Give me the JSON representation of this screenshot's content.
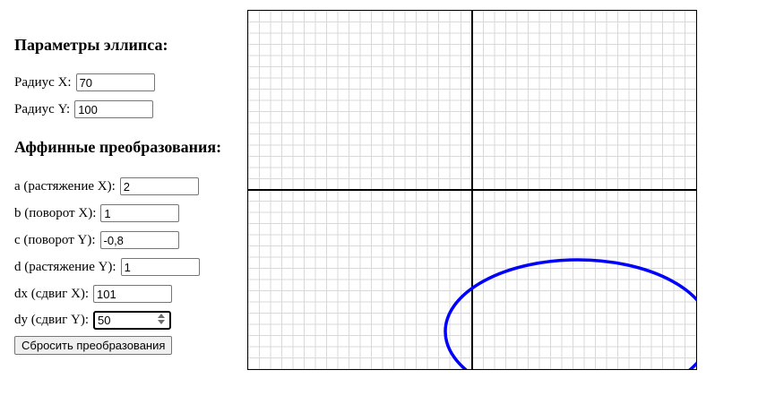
{
  "ellipse_params": {
    "heading": "Параметры эллипса:",
    "radius_x_label": "Радиус X:",
    "radius_x_value": "70",
    "radius_y_label": "Радиус Y:",
    "radius_y_value": "100"
  },
  "affine": {
    "heading": "Аффинные преобразования:",
    "a_label": "a (растяжение X):",
    "a_value": "2",
    "b_label": "b (поворот X):",
    "b_value": "1",
    "c_label": "c (поворот Y):",
    "c_value": "-0,8",
    "d_label": "d (растяжение Y):",
    "d_value": "1",
    "dx_label": "dx (сдвиг X):",
    "dx_value": "101",
    "dy_label": "dy (сдвиг Y):",
    "dy_value": "50"
  },
  "reset_button_label": "Сбросить преобразования",
  "canvas": {
    "grid_color": "#d9d9d9",
    "axis_color": "#000000",
    "curve_color": "#0000ff"
  }
}
